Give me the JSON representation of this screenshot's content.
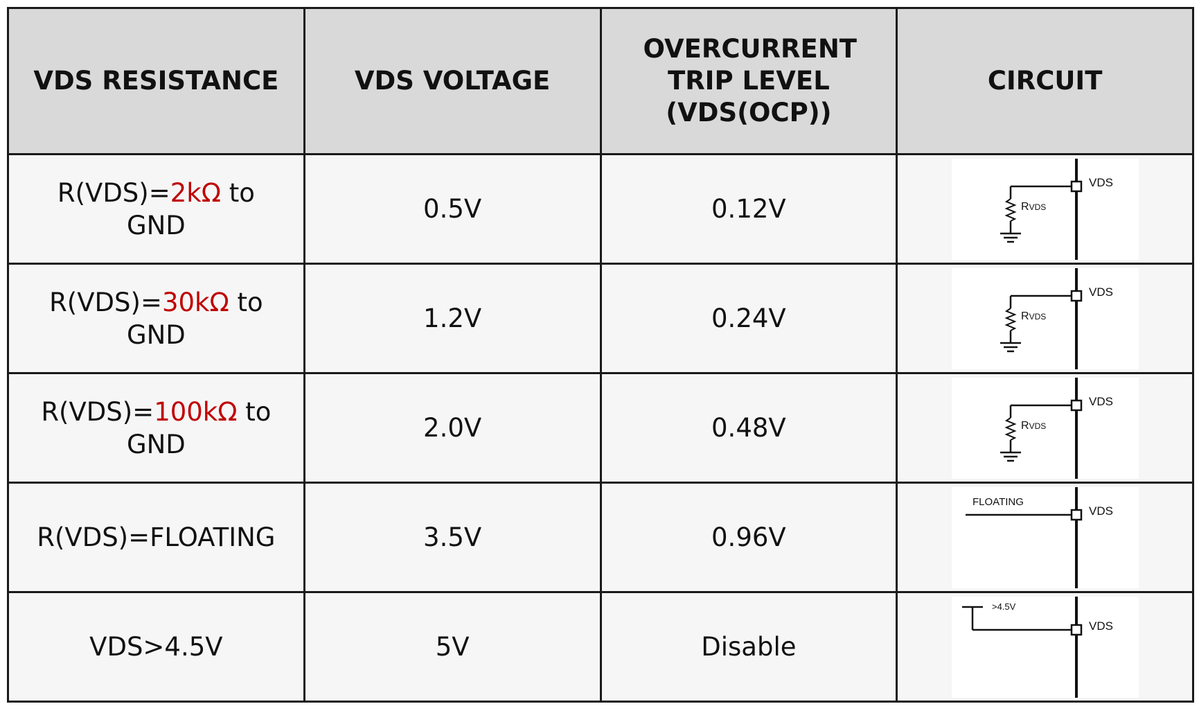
{
  "table": {
    "headers": [
      "VDS RESISTANCE",
      "VDS VOLTAGE",
      "OVERCURRENT TRIP LEVEL (VDS(OCP))",
      "CIRCUIT"
    ],
    "rows": [
      {
        "resistance": {
          "text": "R(VDS)=",
          "value": "2kΩ",
          "suffix": " to",
          "line2": "GND"
        },
        "voltage": "0.5V",
        "trip": "0.12V",
        "circuit": {
          "pin": "VDS",
          "resistor": "R",
          "resistor_sub": "VDS"
        }
      },
      {
        "resistance": {
          "text": "R(VDS)=",
          "value": "30kΩ",
          "suffix": " to",
          "line2": "GND"
        },
        "voltage": "1.2V",
        "trip": "0.24V",
        "circuit": {
          "pin": "VDS",
          "resistor": "R",
          "resistor_sub": "VDS"
        }
      },
      {
        "resistance": {
          "text": "R(VDS)=",
          "value": "100kΩ",
          "suffix": " to",
          "line2": "GND"
        },
        "voltage": "2.0V",
        "trip": "0.48V",
        "circuit": {
          "pin": "VDS",
          "resistor": "R",
          "resistor_sub": "VDS"
        }
      },
      {
        "resistance": {
          "text": "R(VDS)=FLOATING"
        },
        "voltage": "3.5V",
        "trip": "0.96V",
        "circuit": {
          "pin": "VDS",
          "floating": "FLOATING"
        }
      },
      {
        "resistance": {
          "text": "VDS>4.5V"
        },
        "voltage": "5V",
        "trip": "Disable",
        "circuit": {
          "pin": "VDS",
          "supply": ">4.5V"
        }
      }
    ]
  }
}
